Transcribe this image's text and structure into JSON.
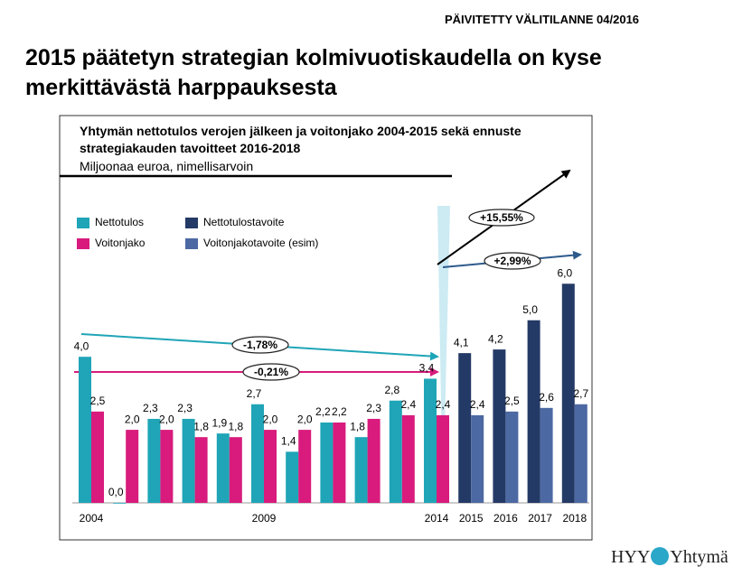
{
  "header": "PÄIVITETTY VÄLITILANNE 04/2016",
  "title": "2015 päätetyn strategian kolmivuotiskaudella on kyse merkittävästä harppauksesta",
  "logo": {
    "left": "HYY",
    "right": "Yhtymä"
  },
  "chart_data": {
    "type": "bar",
    "title": "Yhtymän nettotulos verojen jälkeen ja voitonjako 2004-2015 sekä ennuste strategiakauden tavoitteet 2016-2018",
    "subtitle": "Miljoonaa euroa, nimellisarvoin",
    "categories": [
      "2004",
      null,
      null,
      null,
      null,
      "2009",
      null,
      null,
      null,
      null,
      "2014",
      "2015",
      "2016",
      "2017",
      "2018"
    ],
    "series": [
      {
        "name": "Nettotulos",
        "color": "#1fa5b7",
        "slot": 0,
        "values": [
          4.0,
          0.0,
          2.3,
          2.3,
          1.9,
          2.7,
          1.4,
          2.2,
          1.8,
          2.8,
          3.4,
          null,
          null,
          null,
          null
        ],
        "value_labels": [
          "4,0",
          "0,0",
          "2,3",
          "2,3",
          "1,9",
          "2,7",
          "1,4",
          "2,2",
          "1,8",
          "2,8",
          "3,4",
          null,
          null,
          null,
          null
        ]
      },
      {
        "name": "Voitonjako",
        "color": "#d81b7d",
        "slot": 1,
        "values": [
          2.5,
          2.0,
          2.0,
          1.8,
          1.8,
          2.0,
          2.0,
          2.2,
          2.3,
          2.4,
          2.4,
          null,
          null,
          null,
          null
        ],
        "value_labels": [
          "2,5",
          "2,0",
          "2,0",
          "1,8",
          "1,8",
          "2,0",
          "2,0",
          "2,2",
          "2,3",
          "2,4",
          "2,4",
          null,
          null,
          null,
          null
        ]
      },
      {
        "name": "Nettotulostavoite",
        "color": "#243a66",
        "slot": 0,
        "values": [
          null,
          null,
          null,
          null,
          null,
          null,
          null,
          null,
          null,
          null,
          null,
          4.1,
          4.2,
          5.0,
          6.0
        ],
        "value_labels": [
          null,
          null,
          null,
          null,
          null,
          null,
          null,
          null,
          null,
          null,
          null,
          "4,1",
          "4,2",
          "5,0",
          "6,0"
        ]
      },
      {
        "name": "Voitonjakotavoite (esim)",
        "color": "#4d69a3",
        "slot": 1,
        "values": [
          null,
          null,
          null,
          null,
          null,
          null,
          null,
          null,
          null,
          null,
          null,
          2.4,
          2.5,
          2.6,
          2.7
        ],
        "value_labels": [
          null,
          null,
          null,
          null,
          null,
          null,
          null,
          null,
          null,
          null,
          null,
          "2,4",
          "2,5",
          "2,6",
          "2,7"
        ]
      }
    ],
    "ylim": [
      0,
      6.6
    ],
    "annotations": [
      "-1,78%",
      "-0,21%",
      "+15,55%",
      "+2,99%"
    ]
  }
}
